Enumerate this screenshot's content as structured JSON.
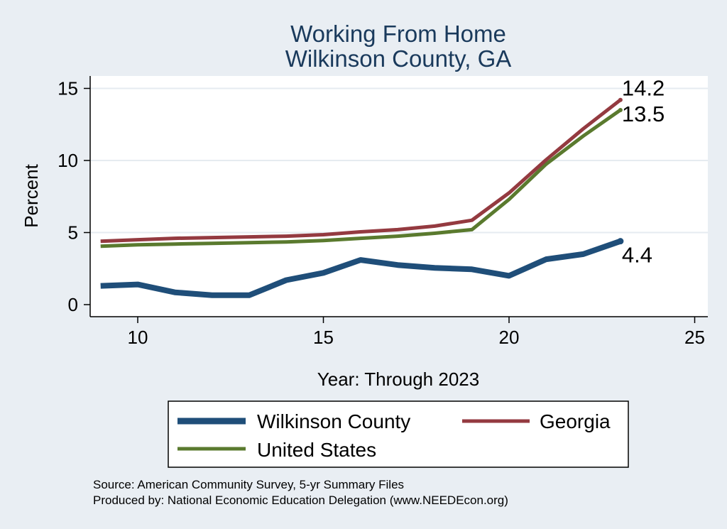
{
  "chart_data": {
    "type": "line",
    "title": "Working From Home",
    "subtitle": "Wilkinson County, GA",
    "xlabel": "Year: Through 2023",
    "ylabel": "Percent",
    "xlim": [
      9,
      25
    ],
    "ylim": [
      -0.5,
      16
    ],
    "xticks": [
      10,
      15,
      20,
      25
    ],
    "yticks": [
      0,
      5,
      10,
      15
    ],
    "grid": true,
    "legend_position": "bottom",
    "x": [
      9,
      10,
      11,
      12,
      13,
      14,
      15,
      16,
      17,
      18,
      19,
      20,
      21,
      22,
      23
    ],
    "series": [
      {
        "name": "Wilkinson County",
        "color": "#1f4e79",
        "values": [
          1.3,
          1.4,
          0.85,
          0.65,
          0.65,
          1.7,
          2.2,
          3.1,
          2.75,
          2.55,
          2.45,
          2.0,
          3.15,
          3.5,
          4.4
        ],
        "end_label": "4.4"
      },
      {
        "name": "Georgia",
        "color": "#943a40",
        "values": [
          4.4,
          4.5,
          4.6,
          4.65,
          4.7,
          4.75,
          4.85,
          5.05,
          5.2,
          5.45,
          5.85,
          7.75,
          10.05,
          12.2,
          14.2
        ],
        "end_label": "14.2"
      },
      {
        "name": "United States",
        "color": "#5a7a2e",
        "values": [
          4.05,
          4.15,
          4.2,
          4.25,
          4.3,
          4.35,
          4.45,
          4.6,
          4.75,
          4.95,
          5.2,
          7.3,
          9.75,
          11.7,
          13.5
        ],
        "end_label": "13.5"
      }
    ],
    "source_lines": [
      "Source: American Community Survey, 5-yr Summary Files",
      "Produced by: National Economic Education Delegation (www.NEEDEcon.org)"
    ]
  }
}
